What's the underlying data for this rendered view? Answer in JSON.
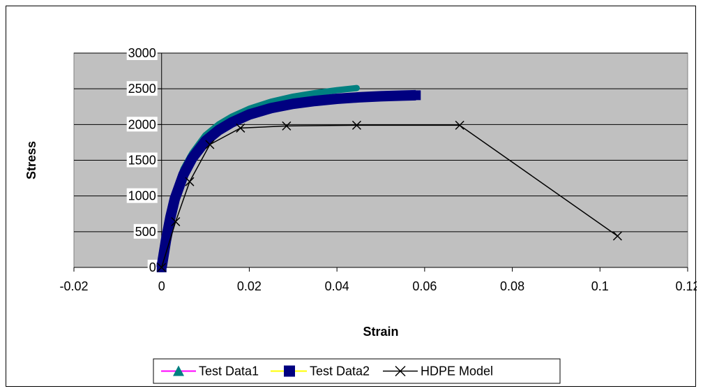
{
  "chart_data": {
    "type": "scatter",
    "xlabel": "Strain",
    "ylabel": "Stress",
    "xlim": [
      -0.02,
      0.12
    ],
    "ylim": [
      0,
      3000
    ],
    "x_ticks": [
      "-0.02",
      "0",
      "0.02",
      "0.04",
      "0.06",
      "0.08",
      "0.1",
      "0.12"
    ],
    "x_tick_values": [
      -0.02,
      0,
      0.02,
      0.04,
      0.06,
      0.08,
      0.1,
      0.12
    ],
    "y_ticks": [
      "0",
      "500",
      "1000",
      "1500",
      "2000",
      "2500",
      "3000"
    ],
    "y_tick_values": [
      0,
      500,
      1000,
      1500,
      2000,
      2500,
      3000
    ],
    "grid": "horizontal",
    "plot_background": "#c0c0c0",
    "legend_position": "bottom",
    "series": [
      {
        "name": "Test Data1",
        "line_color": "#ff00ff",
        "marker_color": "#008080",
        "marker": "triangle",
        "x": [
          0,
          0.001,
          0.002,
          0.003,
          0.005,
          0.007,
          0.01,
          0.013,
          0.016,
          0.02,
          0.025,
          0.03,
          0.035,
          0.04,
          0.0445
        ],
        "y": [
          0,
          420,
          760,
          1030,
          1380,
          1600,
          1850,
          2000,
          2110,
          2220,
          2320,
          2390,
          2440,
          2480,
          2510
        ]
      },
      {
        "name": "Test Data2",
        "line_color": "#ffff00",
        "marker_color": "#000080",
        "marker": "square",
        "x": [
          0,
          0.001,
          0.002,
          0.003,
          0.005,
          0.007,
          0.01,
          0.013,
          0.016,
          0.02,
          0.025,
          0.03,
          0.035,
          0.04,
          0.045,
          0.05,
          0.055,
          0.058
        ],
        "y": [
          0,
          380,
          700,
          960,
          1300,
          1530,
          1770,
          1920,
          2030,
          2140,
          2230,
          2290,
          2330,
          2360,
          2380,
          2395,
          2405,
          2410
        ]
      },
      {
        "name": "HDPE Model",
        "line_color": "#000000",
        "marker_color": "#000000",
        "marker": "x",
        "x": [
          0,
          0.0032,
          0.0064,
          0.011,
          0.018,
          0.0285,
          0.0445,
          0.068,
          0.104
        ],
        "y": [
          0,
          640,
          1200,
          1720,
          1950,
          1980,
          1990,
          1990,
          440
        ]
      }
    ]
  }
}
